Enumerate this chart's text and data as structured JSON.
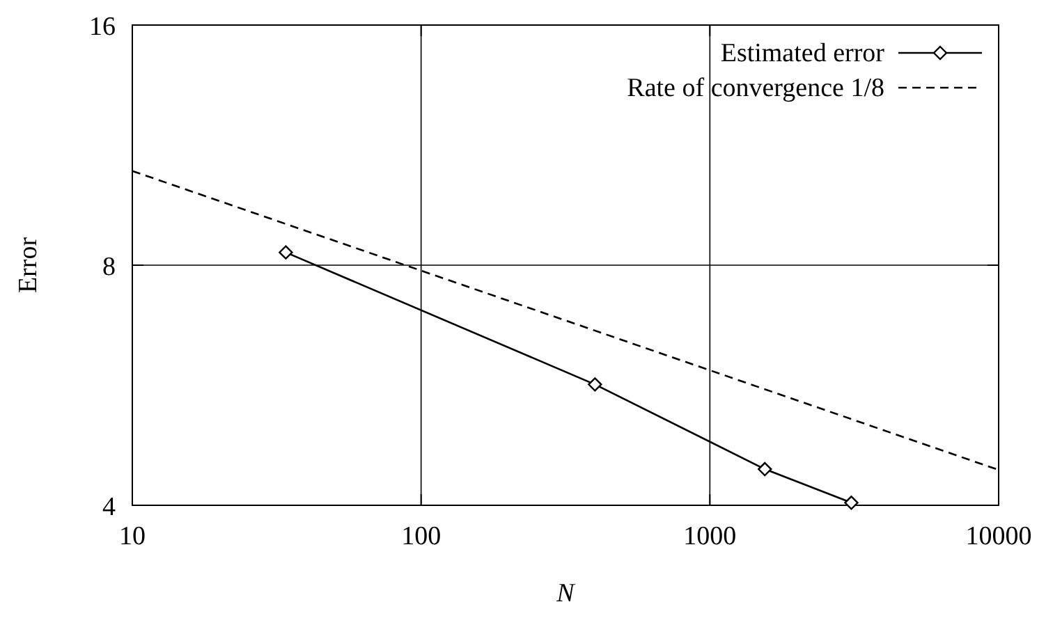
{
  "chart_data": {
    "type": "line",
    "xlabel": "N",
    "ylabel": "Error",
    "log": "xy",
    "xlim": [
      10,
      10000
    ],
    "xticks": [
      10,
      100,
      1000,
      10000
    ],
    "ylim": [
      4,
      16
    ],
    "yticks": [
      4,
      8,
      16
    ],
    "grid": true,
    "legend": "top right",
    "series": [
      {
        "name": "Estimated error",
        "color": "#000000",
        "marker": "diamond",
        "line_style": "solid",
        "x": [
          34,
          400,
          1550,
          3090
        ],
        "values": [
          8.3,
          5.67,
          4.44,
          4.03
        ]
      },
      {
        "name": "Rate of convergence 1/8",
        "color": "#000000",
        "marker": "none",
        "line_style": "dashed",
        "x": [
          10,
          10000
        ],
        "values": [
          10.5,
          4.43
        ]
      }
    ]
  }
}
